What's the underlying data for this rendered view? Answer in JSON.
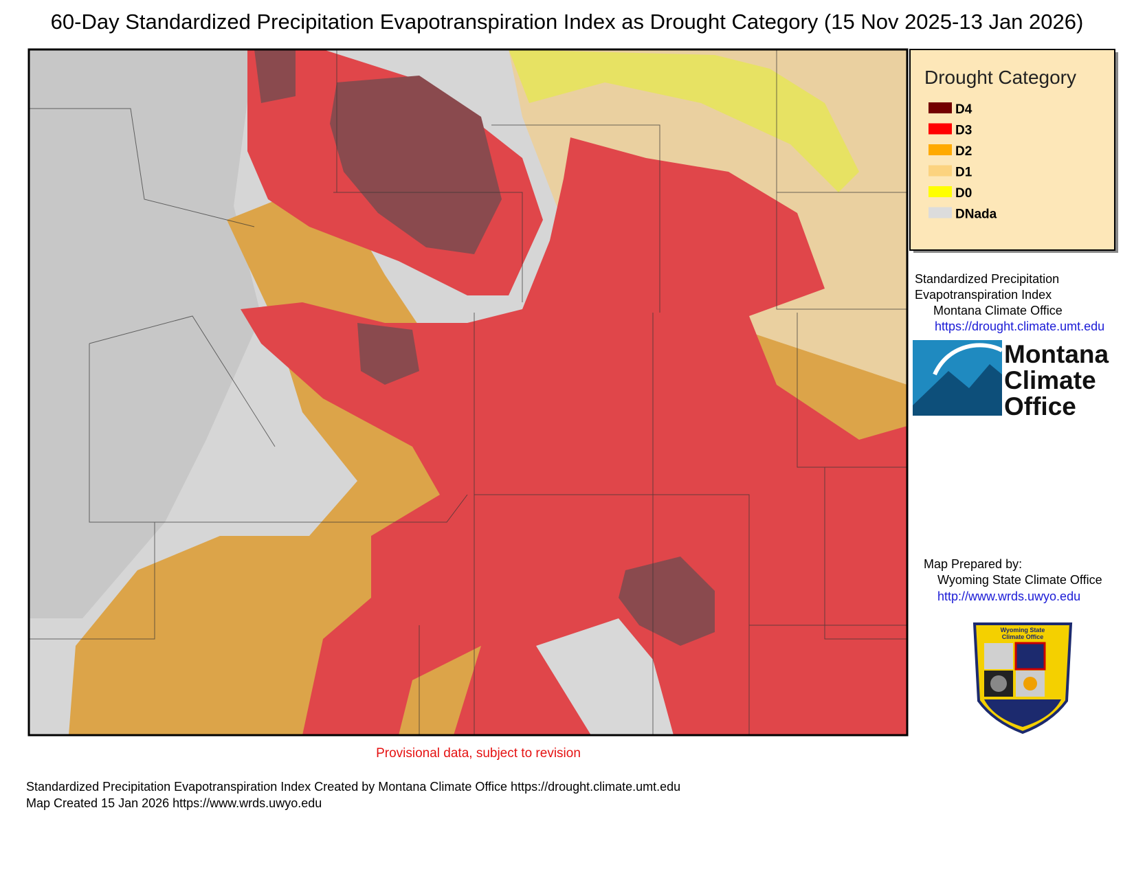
{
  "header": {
    "title": "60-Day Standardized Precipitation Evapotranspiration Index as Drought Category (15 Nov 2025-13 Jan 2026)"
  },
  "legend": {
    "title": "Drought Category",
    "items": [
      {
        "label": "D4",
        "color": "#730000"
      },
      {
        "label": "D3",
        "color": "#ff0000"
      },
      {
        "label": "D2",
        "color": "#ffaa00"
      },
      {
        "label": "D1",
        "color": "#fcd37f"
      },
      {
        "label": "D0",
        "color": "#ffff00"
      },
      {
        "label": "DNada",
        "color": "#dcdcdc"
      }
    ]
  },
  "credits": {
    "lines": [
      "Standardized Precipitation",
      "Evapotranspiration Index",
      "Montana Climate Office"
    ],
    "url": "https://drought.climate.umt.edu"
  },
  "logo": {
    "lines": [
      "Montana",
      "Climate",
      "Office"
    ]
  },
  "prepared": {
    "label": "Map Prepared by:",
    "org": "Wyoming State Climate Office",
    "url": "http://www.wrds.uwyo.edu"
  },
  "seal": {
    "lines": [
      "Wyoming State",
      "Climate Office"
    ]
  },
  "notice": "Provisional data, subject to revision",
  "footer": [
    "Standardized Precipitation Evapotranspiration Index Created by Montana Climate Office https://drought.climate.umt.edu",
    "Map Created 15 Jan 2026 https://www.wrds.uwyo.edu"
  ]
}
